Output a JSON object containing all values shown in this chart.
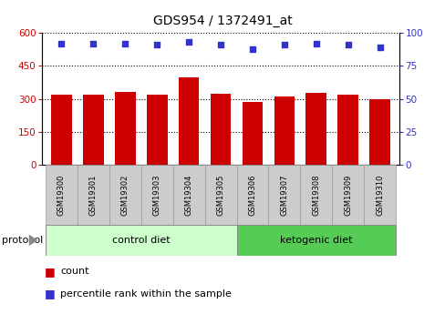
{
  "title": "GDS954 / 1372491_at",
  "samples": [
    "GSM19300",
    "GSM19301",
    "GSM19302",
    "GSM19303",
    "GSM19304",
    "GSM19305",
    "GSM19306",
    "GSM19307",
    "GSM19308",
    "GSM19309",
    "GSM19310"
  ],
  "counts": [
    320,
    318,
    330,
    318,
    400,
    325,
    287,
    310,
    328,
    318,
    300
  ],
  "percentile_ranks": [
    92,
    92,
    92,
    91,
    93,
    91,
    88,
    91,
    92,
    91,
    89
  ],
  "ylim_left": [
    0,
    600
  ],
  "ylim_right": [
    0,
    100
  ],
  "yticks_left": [
    0,
    150,
    300,
    450,
    600
  ],
  "yticks_right": [
    0,
    25,
    50,
    75,
    100
  ],
  "bar_color": "#cc0000",
  "dot_color": "#3333cc",
  "control_label": "control diet",
  "ketogenic_label": "ketogenic diet",
  "protocol_label": "protocol",
  "control_bg": "#ccffcc",
  "ketogenic_bg": "#55cc55",
  "tick_bg": "#cccccc",
  "legend_count_label": "count",
  "legend_percentile_label": "percentile rank within the sample",
  "title_fontsize": 10,
  "tick_fontsize": 7.5,
  "sample_fontsize": 6,
  "protocol_fontsize": 8,
  "legend_fontsize": 8
}
